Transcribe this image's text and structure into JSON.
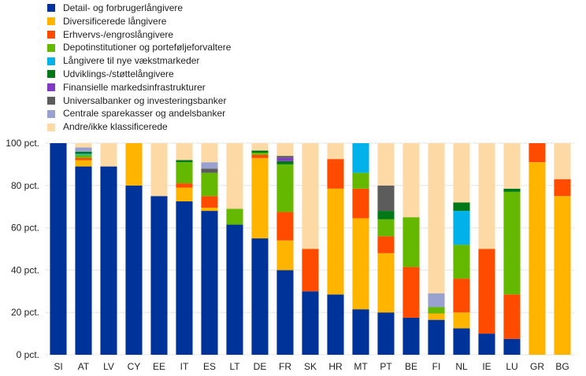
{
  "chart_data": {
    "type": "bar",
    "stacked": true,
    "title": "",
    "xlabel": "",
    "ylabel": "",
    "ylim": [
      0,
      100
    ],
    "y_ticks": [
      "0 pct.",
      "20 pct.",
      "40 pct.",
      "60 pct.",
      "80 pct.",
      "100 pct."
    ],
    "legend_position": "top-left",
    "categories": [
      "SI",
      "AT",
      "LV",
      "CY",
      "EE",
      "IT",
      "ES",
      "LT",
      "DE",
      "FR",
      "SK",
      "HR",
      "MT",
      "PT",
      "BE",
      "FI",
      "NL",
      "IE",
      "LU",
      "GR",
      "BG"
    ],
    "series": [
      {
        "name": "Detail- og forbrugerlångivere",
        "color": "#003399",
        "values": [
          100,
          89,
          89,
          80,
          75,
          72.5,
          68,
          61.5,
          55,
          40,
          30,
          28.5,
          21.5,
          20,
          17.5,
          16.5,
          12.5,
          10,
          7.5,
          0,
          0
        ]
      },
      {
        "name": "Diversificerede långivere",
        "color": "#ffb400",
        "values": [
          0,
          3,
          0,
          20,
          0,
          6.5,
          1.5,
          0,
          38,
          14,
          0,
          50,
          43,
          28,
          0,
          3,
          7.5,
          0,
          0,
          91,
          75
        ]
      },
      {
        "name": "Erhvervs-/engroslångivere",
        "color": "#ff4b00",
        "values": [
          0,
          1,
          0,
          0,
          0,
          2,
          5.5,
          0,
          1.5,
          13.5,
          20,
          14,
          14,
          8,
          24,
          0,
          16,
          40,
          21,
          9,
          8
        ]
      },
      {
        "name": "Depotinstitutioner og porteføljeforvaltere",
        "color": "#65b800",
        "values": [
          0,
          1.5,
          0,
          0,
          0,
          10,
          11,
          7.5,
          1,
          22.5,
          0,
          0,
          7.5,
          8,
          23.5,
          3,
          16,
          0,
          48.5,
          0,
          0
        ]
      },
      {
        "name": "Långivere til nye vækstmarkeder",
        "color": "#00b1ea",
        "values": [
          0,
          0.5,
          0,
          0,
          0,
          0,
          0,
          0,
          0,
          0,
          0,
          0,
          14,
          0,
          0,
          0,
          16,
          0,
          0,
          0,
          0
        ]
      },
      {
        "name": "Udviklings-/støttelångivere",
        "color": "#007816",
        "values": [
          0,
          1,
          0,
          0,
          0,
          1,
          0,
          0,
          1,
          1.5,
          0,
          0,
          0,
          4,
          0,
          0,
          4,
          0,
          1.5,
          0,
          0
        ]
      },
      {
        "name": "Finansielle markedsinfrastrukturer",
        "color": "#8139c6",
        "values": [
          0,
          0,
          0,
          0,
          0,
          0,
          0,
          0,
          0,
          1.5,
          0,
          0,
          0,
          0,
          0,
          0,
          0,
          0,
          0,
          0,
          0
        ]
      },
      {
        "name": "Universalbanker og investeringsbanker",
        "color": "#5c5c5c",
        "values": [
          0,
          0,
          0,
          0,
          0,
          0,
          2,
          0,
          0,
          1,
          0,
          0,
          0,
          12,
          0,
          0,
          0,
          0,
          0,
          0,
          0
        ]
      },
      {
        "name": "Centrale sparekasser og andelsbanker",
        "color": "#98a1d0",
        "values": [
          0,
          2,
          0,
          0,
          0,
          0,
          3,
          0,
          0,
          0,
          0,
          0,
          0,
          0,
          0,
          6.5,
          0,
          0,
          0,
          0,
          0
        ]
      },
      {
        "name": "Andre/ikke klassificerede",
        "color": "#fdd9a5",
        "values": [
          0,
          2,
          11,
          0,
          25,
          8,
          9,
          31,
          3.5,
          6,
          50,
          7.5,
          0,
          20,
          35,
          71,
          28,
          50,
          21.5,
          0,
          17
        ]
      }
    ]
  }
}
